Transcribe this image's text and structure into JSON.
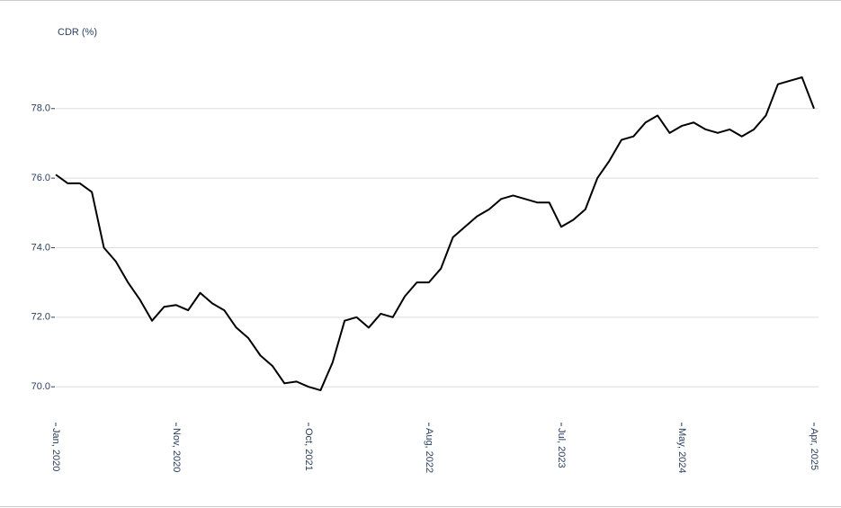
{
  "chart_data": {
    "type": "line",
    "y_axis_label": "CDR (%)",
    "x": [
      "2020-01",
      "2020-02",
      "2020-03",
      "2020-04",
      "2020-05",
      "2020-06",
      "2020-07",
      "2020-08",
      "2020-09",
      "2020-10",
      "2020-11",
      "2020-12",
      "2021-01",
      "2021-02",
      "2021-03",
      "2021-04",
      "2021-05",
      "2021-06",
      "2021-07",
      "2021-08",
      "2021-09",
      "2021-10",
      "2021-11",
      "2021-12",
      "2022-01",
      "2022-02",
      "2022-03",
      "2022-04",
      "2022-05",
      "2022-06",
      "2022-07",
      "2022-08",
      "2022-09",
      "2022-10",
      "2022-11",
      "2022-12",
      "2023-01",
      "2023-02",
      "2023-03",
      "2023-04",
      "2023-05",
      "2023-06",
      "2023-07",
      "2023-08",
      "2023-09",
      "2023-10",
      "2023-11",
      "2023-12",
      "2024-01",
      "2024-02",
      "2024-03",
      "2024-04",
      "2024-05",
      "2024-06",
      "2024-07",
      "2024-08",
      "2024-09",
      "2024-10",
      "2024-11",
      "2024-12",
      "2025-01",
      "2025-02",
      "2025-03",
      "2025-04"
    ],
    "series": [
      {
        "name": "CDR",
        "color": "#000000",
        "values": [
          76.1,
          75.85,
          75.85,
          75.6,
          74.0,
          73.6,
          73.0,
          72.5,
          71.9,
          72.3,
          72.35,
          72.2,
          72.7,
          72.4,
          72.2,
          71.7,
          71.4,
          70.9,
          70.6,
          70.1,
          70.15,
          70.0,
          69.9,
          70.7,
          71.9,
          72.0,
          71.7,
          72.1,
          72.0,
          72.6,
          73.0,
          73.0,
          73.4,
          74.3,
          74.6,
          74.9,
          75.1,
          75.4,
          75.5,
          75.4,
          75.3,
          75.3,
          74.6,
          74.8,
          75.1,
          76.0,
          76.5,
          77.1,
          77.2,
          77.6,
          77.8,
          77.3,
          77.5,
          77.6,
          77.4,
          77.3,
          77.4,
          77.2,
          77.4,
          77.8,
          78.7,
          78.8,
          78.9,
          78.0
        ]
      }
    ],
    "xlim": [
      "2020-01",
      "2025-04"
    ],
    "xticks": [
      {
        "value": "2020-01",
        "label": "Jan, 2020"
      },
      {
        "value": "2020-11",
        "label": "Nov, 2020"
      },
      {
        "value": "2021-10",
        "label": "Oct, 2021"
      },
      {
        "value": "2022-08",
        "label": "Aug, 2022"
      },
      {
        "value": "2023-07",
        "label": "Jul, 2023"
      },
      {
        "value": "2024-05",
        "label": "May, 2024"
      },
      {
        "value": "2025-04",
        "label": "Apr, 2025"
      }
    ],
    "ylim": [
      69.1,
      79.7
    ],
    "yticks": [
      {
        "value": 70,
        "label": "70.0"
      },
      {
        "value": 72,
        "label": "72.0"
      },
      {
        "value": 74,
        "label": "74.0"
      },
      {
        "value": 76,
        "label": "76.0"
      },
      {
        "value": 78,
        "label": "78.0"
      }
    ],
    "grid": true
  }
}
